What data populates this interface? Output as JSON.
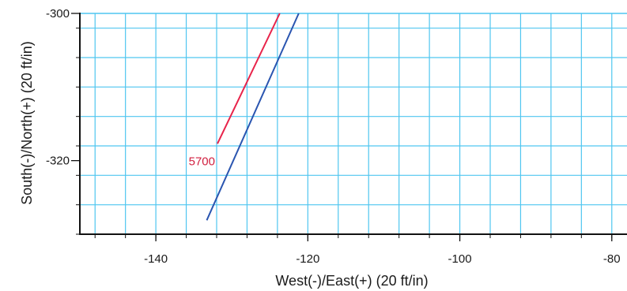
{
  "chart_data": {
    "type": "line",
    "xlabel": "West(-)/East(+) (20 ft/in)",
    "ylabel": "South(-)/North(+) (20 ft/in)",
    "xlim": [
      -150,
      -78
    ],
    "ylim": [
      -330,
      -300
    ],
    "x_ticks": [
      {
        "value": -140,
        "label": "-140"
      },
      {
        "value": -120,
        "label": "-120"
      },
      {
        "value": -100,
        "label": "-100"
      },
      {
        "value": -80,
        "label": "-80"
      }
    ],
    "y_ticks": [
      {
        "value": -300,
        "label": "-300"
      },
      {
        "value": -320,
        "label": "-320"
      }
    ],
    "grid": true,
    "grid_minor_x_step": 4,
    "grid_minor_y_step": 4,
    "series": [
      {
        "color": "#e8234a",
        "points": [
          [
            -131.9,
            -317.7
          ],
          [
            -123.7,
            -300.0
          ]
        ]
      },
      {
        "color": "#2a55b0",
        "points": [
          [
            -133.3,
            -328.1
          ],
          [
            -121.2,
            -300.0
          ]
        ]
      }
    ],
    "annotations": [
      {
        "text": "5700",
        "x": -132.0,
        "y": -318.5,
        "color": "#d11f3f"
      }
    ],
    "colors": {
      "grid": "#4fc6f0",
      "axis": "#111111",
      "background": "#ffffff"
    }
  }
}
